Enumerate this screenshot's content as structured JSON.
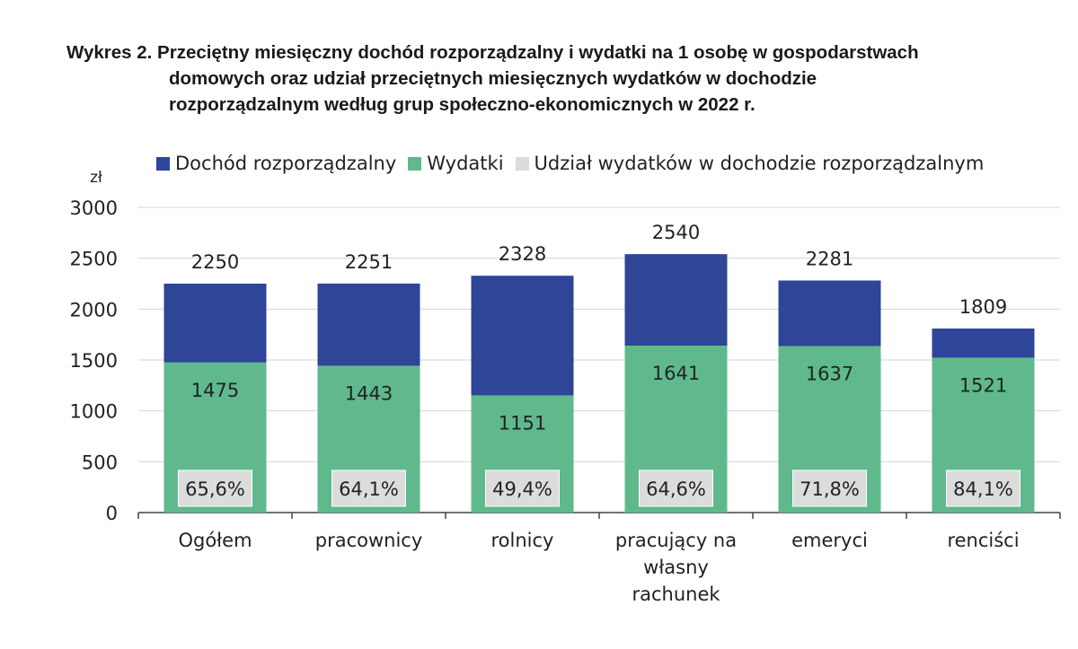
{
  "title": {
    "line1": "Wykres 2. Przeciętny miesięczny dochód rozporządzalny i wydatki na 1 osobę w gospodarstwach",
    "line2": "domowych oraz udział przeciętnych miesięcznych wydatków w dochodzie",
    "line3": "rozporządzalnym według grup społeczno-ekonomicznych w 2022 r."
  },
  "legend": [
    {
      "label": "Dochód rozporządzalny",
      "color": "#2e4598"
    },
    {
      "label": "Wydatki",
      "color": "#5fb98c"
    },
    {
      "label": "Udział wydatków w dochodzie rozporządzalnym",
      "color": "#dcdcdc"
    }
  ],
  "chart_data": {
    "type": "bar",
    "stacked": true,
    "ylabel": "zł",
    "ylim": [
      0,
      3000
    ],
    "yticks": [
      0,
      500,
      1000,
      1500,
      2000,
      2500,
      3000
    ],
    "grid": true,
    "legend_position": "top",
    "categories": [
      [
        "Ogółem"
      ],
      [
        "pracownicy"
      ],
      [
        "rolnicy"
      ],
      [
        "pracujący na",
        "własny",
        "rachunek"
      ],
      [
        "emeryci"
      ],
      [
        "renciści"
      ]
    ],
    "series": [
      {
        "name": "Dochód rozporządzalny",
        "color": "#2e4598",
        "values": [
          2250,
          2251,
          2328,
          2540,
          2281,
          1809
        ]
      },
      {
        "name": "Wydatki",
        "color": "#5fb98c",
        "values": [
          1475,
          1443,
          1151,
          1641,
          1637,
          1521
        ]
      },
      {
        "name": "Udział wydatków w dochodzie rozporządzalnym",
        "color": "#dcdcdc",
        "values": [
          "65,6%",
          "64,1%",
          "49,4%",
          "64,6%",
          "71,8%",
          "84,1%"
        ]
      }
    ]
  }
}
